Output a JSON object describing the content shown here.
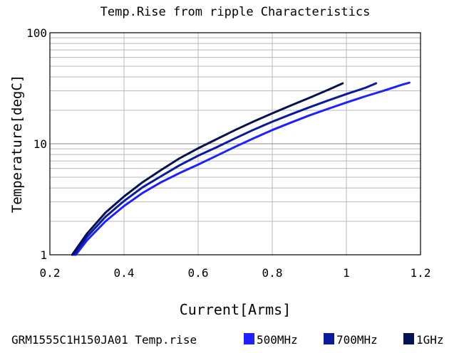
{
  "chart_data": {
    "type": "line",
    "title": "Temp.Rise from ripple Characteristics",
    "xlabel": "Current[Arms]",
    "ylabel": "Temperature[degC]",
    "xlim": [
      0.2,
      1.2
    ],
    "ylim": [
      1,
      100
    ],
    "y_scale": "log",
    "grid": true,
    "xticks": [
      "0.2",
      "0.4",
      "0.6",
      "0.8",
      "1",
      "1.2"
    ],
    "yticks": [
      "1",
      "10",
      "100"
    ],
    "legend_prefix": "GRM1555C1H150JA01 Temp.rise",
    "legend_position": "bottom",
    "series": [
      {
        "name": "500MHz",
        "color": "#1f1fff",
        "x": [
          0.27,
          0.3,
          0.35,
          0.4,
          0.45,
          0.5,
          0.55,
          0.6,
          0.65,
          0.7,
          0.75,
          0.8,
          0.85,
          0.9,
          0.95,
          1.0,
          1.05,
          1.1,
          1.15,
          1.17
        ],
        "y": [
          1.0,
          1.35,
          2.0,
          2.75,
          3.6,
          4.5,
          5.45,
          6.5,
          7.8,
          9.4,
          11.2,
          13.3,
          15.5,
          18.0,
          20.6,
          23.5,
          26.7,
          30.0,
          34.0,
          35.5
        ]
      },
      {
        "name": "700MHz",
        "color": "#0a1a9c",
        "x": [
          0.265,
          0.3,
          0.35,
          0.4,
          0.45,
          0.5,
          0.55,
          0.6,
          0.65,
          0.7,
          0.75,
          0.8,
          0.85,
          0.9,
          0.95,
          1.0,
          1.05,
          1.08
        ],
        "y": [
          1.0,
          1.45,
          2.2,
          3.05,
          4.05,
          5.1,
          6.4,
          7.8,
          9.3,
          11.2,
          13.4,
          15.8,
          18.4,
          21.3,
          24.5,
          28.0,
          31.8,
          35.0
        ]
      },
      {
        "name": "1GHz",
        "color": "#06124e",
        "x": [
          0.26,
          0.3,
          0.35,
          0.4,
          0.45,
          0.5,
          0.55,
          0.6,
          0.65,
          0.7,
          0.75,
          0.8,
          0.85,
          0.9,
          0.95,
          0.99
        ],
        "y": [
          1.0,
          1.55,
          2.4,
          3.35,
          4.5,
          5.8,
          7.4,
          9.1,
          11.0,
          13.3,
          15.9,
          18.8,
          22.1,
          25.9,
          30.5,
          35.0
        ]
      }
    ]
  }
}
